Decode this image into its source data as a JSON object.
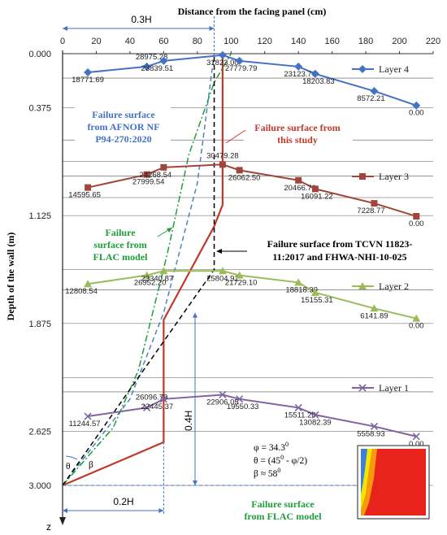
{
  "chart_data": {
    "type": "line",
    "x_title": "Distance  from the facing panel  (cm)",
    "y_title": "Depth of the wall (m)",
    "x_ticks": [
      "0",
      "20",
      "40",
      "60",
      "80",
      "100",
      "120",
      "140",
      "160",
      "180",
      "200",
      "220"
    ],
    "y_ticks": [
      "0.000",
      "0.375",
      "1.125",
      "1.875",
      "2.625",
      "3.000"
    ],
    "xlim": [
      0,
      220
    ],
    "ylim": [
      0,
      3.0
    ],
    "grid": true,
    "legend_position": "right",
    "z_label": "z",
    "series": [
      {
        "name": "Layer 4",
        "color": "#4472c4",
        "marker": "diamond",
        "x": [
          15,
          50,
          60,
          95,
          105,
          140,
          150,
          185,
          210
        ],
        "y": [
          0.13,
          0.09,
          0.05,
          0.01,
          0.05,
          0.09,
          0.14,
          0.26,
          0.36
        ],
        "labels": [
          "18771.69",
          "28975.28",
          "23839.51",
          "31823.00",
          "27779.79",
          "23123.70",
          "18203.83",
          "8572.21",
          "0.00"
        ]
      },
      {
        "name": "Layer 3",
        "color": "#a0453c",
        "marker": "square",
        "x": [
          15,
          50,
          60,
          95,
          105,
          140,
          150,
          185,
          210
        ],
        "y": [
          0.93,
          0.84,
          0.79,
          0.77,
          0.81,
          0.88,
          0.94,
          1.04,
          1.13
        ],
        "labels": [
          "14595.65",
          "27999.54",
          "24268.54",
          "30479.28",
          "26062.50",
          "20466.79",
          "16091.22",
          "7228.77",
          "0.00"
        ]
      },
      {
        "name": "Layer 2",
        "color": "#9bbb59",
        "marker": "triangle",
        "x": [
          15,
          50,
          60,
          95,
          105,
          140,
          150,
          185,
          210
        ],
        "y": [
          1.6,
          1.54,
          1.51,
          1.51,
          1.54,
          1.59,
          1.66,
          1.77,
          1.84
        ],
        "labels": [
          "12808.54",
          "26952.20",
          "23340.87",
          "25804.91",
          "21729.10",
          "18818.39",
          "15155.31",
          "6141.89",
          "0.00"
        ]
      },
      {
        "name": "Layer 1",
        "color": "#8064a2",
        "marker": "cross",
        "x": [
          15,
          50,
          60,
          95,
          105,
          140,
          150,
          185,
          210
        ],
        "y": [
          2.52,
          2.46,
          2.4,
          2.37,
          2.4,
          2.46,
          2.51,
          2.59,
          2.66
        ],
        "labels": [
          "11244.57",
          "26096.79",
          "22445.37",
          "22906.05",
          "19550.33",
          "15511.20",
          "13082.39",
          "5558.93",
          "0.00"
        ]
      }
    ],
    "failure_surfaces": [
      {
        "name": "Failure surface from this study",
        "color": "#c0392b",
        "style": "solid",
        "points": [
          [
            0,
            3.0
          ],
          [
            60,
            2.7
          ],
          [
            60,
            1.85
          ],
          [
            90,
            1.2
          ],
          [
            95,
            1.05
          ],
          [
            95,
            0.0
          ]
        ]
      },
      {
        "name": "Failure surface from AFNOR NF P94-270:2020",
        "color": "#4f81bd",
        "style": "dashed",
        "points": [
          [
            0,
            3.0
          ],
          [
            40,
            2.4
          ],
          [
            60,
            1.8
          ],
          [
            80,
            0.9
          ],
          [
            90,
            0.0
          ]
        ]
      },
      {
        "name": "Failure surface from FLAC model",
        "color": "#1e9e3a",
        "style": "dashdot",
        "points": [
          [
            0,
            3.0
          ],
          [
            30,
            2.6
          ],
          [
            45,
            2.2
          ],
          [
            62,
            1.4
          ],
          [
            75,
            0.7
          ],
          [
            90,
            0.2
          ],
          [
            100,
            0.0
          ]
        ]
      },
      {
        "name": "Failure surface from TCVN 11823-11:2017 and FHWA-NHI-10-025",
        "color": "#000000",
        "style": "dashed",
        "points": [
          [
            0,
            3.0
          ],
          [
            90,
            1.5
          ],
          [
            90,
            0.0
          ]
        ]
      }
    ],
    "annotations": {
      "afnor_label": [
        "Failure surface",
        "from AFNOR NF",
        "P94-270:2020"
      ],
      "study_label": [
        "Failure surface from",
        "this study"
      ],
      "flac_label": [
        "Failure",
        "surface from",
        "FLAC model"
      ],
      "tcvn_label": [
        "Failure surface from TCVN 11823-",
        "11:2017 and  FHWA-NHI-10-025"
      ],
      "flac_bottom_label": [
        "Failure surface",
        "from FLAC model"
      ],
      "dim_03H": "0.3H",
      "dim_04H": "0.4H",
      "dim_02H": "0.2H",
      "theta_symbol": "θ",
      "beta_symbol": "β",
      "formula_phi": "φ = 34.3",
      "formula_theta": "θ = (45",
      "formula_theta_mid": " - φ/2)",
      "formula_beta": "β ≈ 58",
      "degree": "0"
    }
  }
}
